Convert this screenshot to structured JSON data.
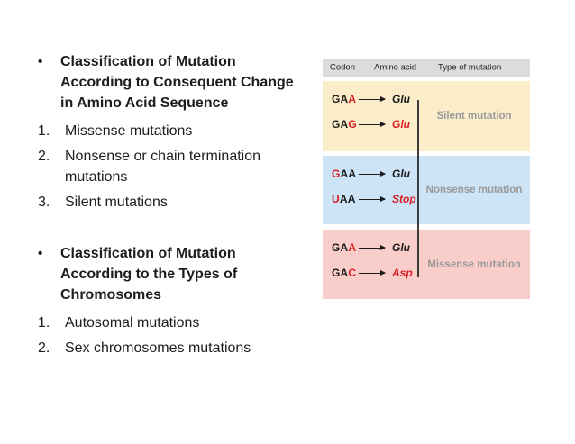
{
  "left": {
    "bullet_char": "•",
    "blocks": [
      {
        "heading_lines": [
          "Classification of Mutation",
          "According to Consequent Change",
          "in Amino Acid Sequence"
        ],
        "items": [
          {
            "num": "1.",
            "lines": [
              "Missense mutations"
            ]
          },
          {
            "num": "2.",
            "lines": [
              "Nonsense or chain termination",
              "mutations"
            ]
          },
          {
            "num": "3.",
            "lines": [
              "Silent mutations"
            ]
          }
        ]
      },
      {
        "heading_lines": [
          "Classification of Mutation",
          "According to the Types of",
          "Chromosomes"
        ],
        "items": [
          {
            "num": "1.",
            "lines": [
              "Autosomal mutations"
            ]
          },
          {
            "num": "2.",
            "lines": [
              "Sex chromosomes mutations"
            ]
          }
        ]
      }
    ]
  },
  "diagram": {
    "header": {
      "codon": "Codon",
      "amino": "Amino acid",
      "type": "Type of mutation"
    },
    "sections": [
      {
        "label": "Silent mutation",
        "bg": "#fbecca",
        "rows": [
          {
            "pre": "GA",
            "mut": "A",
            "suf": "",
            "amino": "Glu",
            "amino_red": false
          },
          {
            "pre": "GA",
            "mut": "G",
            "suf": "",
            "amino": "Glu",
            "amino_red": true
          }
        ]
      },
      {
        "label": "Nonsense mutation",
        "bg": "#cde3f6",
        "rows": [
          {
            "pre": "",
            "mut": "G",
            "suf": "AA",
            "amino": "Glu",
            "amino_red": false
          },
          {
            "pre": "",
            "mut": "U",
            "suf": "AA",
            "amino": "Stop",
            "amino_red": true
          }
        ]
      },
      {
        "label": "Missense mutation",
        "bg": "#f8cdca",
        "rows": [
          {
            "pre": "GA",
            "mut": "A",
            "suf": "",
            "amino": "Glu",
            "amino_red": false
          },
          {
            "pre": "GA",
            "mut": "C",
            "suf": "",
            "amino": "Asp",
            "amino_red": true
          }
        ]
      }
    ],
    "colors": {
      "header_bar": "#dcdcdc",
      "mutant_letter_red": "#d92027",
      "label_gray": "#9a9a9a",
      "divider": "#3d3d3d"
    }
  }
}
